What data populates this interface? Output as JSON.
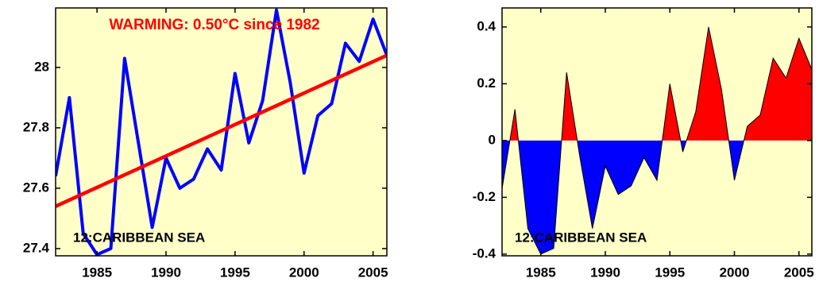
{
  "chart_data": [
    {
      "type": "line",
      "annotations": [
        "WARMING: 0.50°C since 1982",
        "12:CARIBBEAN SEA"
      ],
      "x": [
        1982,
        1983,
        1984,
        1985,
        1986,
        1987,
        1988,
        1989,
        1990,
        1991,
        1992,
        1993,
        1994,
        1995,
        1996,
        1997,
        1998,
        1999,
        2000,
        2001,
        2002,
        2003,
        2004,
        2005,
        2006
      ],
      "series": [
        {
          "color": "#0000ff",
          "values": [
            27.64,
            27.9,
            27.45,
            27.38,
            27.4,
            28.03,
            27.75,
            27.47,
            27.7,
            27.6,
            27.63,
            27.73,
            27.66,
            27.98,
            27.75,
            27.89,
            28.19,
            27.95,
            27.65,
            27.84,
            27.88,
            28.08,
            28.02,
            28.16,
            28.04
          ]
        },
        {
          "color": "#ff0000",
          "x": [
            1982,
            2006
          ],
          "values": [
            27.54,
            28.04
          ]
        }
      ],
      "xlim": [
        1982,
        2006
      ],
      "xticks": [
        1985,
        1990,
        1995,
        2000,
        2005
      ],
      "ylim": [
        27.376,
        28.197
      ],
      "yticks": [
        27.4,
        27.6,
        27.8,
        28
      ],
      "background": "#ffffc8"
    },
    {
      "type": "area",
      "annotations": [
        "12:CARIBBEAN SEA"
      ],
      "x": [
        1982,
        1983,
        1984,
        1985,
        1986,
        1987,
        1988,
        1989,
        1990,
        1991,
        1992,
        1993,
        1994,
        1995,
        1996,
        1997,
        1998,
        1999,
        2000,
        2001,
        2002,
        2003,
        2004,
        2005,
        2006
      ],
      "values": [
        -0.17,
        0.11,
        -0.31,
        -0.4,
        -0.38,
        0.24,
        -0.05,
        -0.31,
        -0.09,
        -0.19,
        -0.16,
        -0.06,
        -0.14,
        0.2,
        -0.04,
        0.1,
        0.4,
        0.18,
        -0.14,
        0.05,
        0.09,
        0.29,
        0.22,
        0.36,
        0.25
      ],
      "positive_color": "#ff0000",
      "negative_color": "#0000ff",
      "xlim": [
        1982,
        2006
      ],
      "xticks": [
        1985,
        1990,
        1995,
        2000,
        2005
      ],
      "ylim": [
        -0.406,
        0.467
      ],
      "yticks": [
        -0.4,
        -0.2,
        0,
        0.2,
        0.4
      ],
      "background": "#ffffc8"
    }
  ]
}
